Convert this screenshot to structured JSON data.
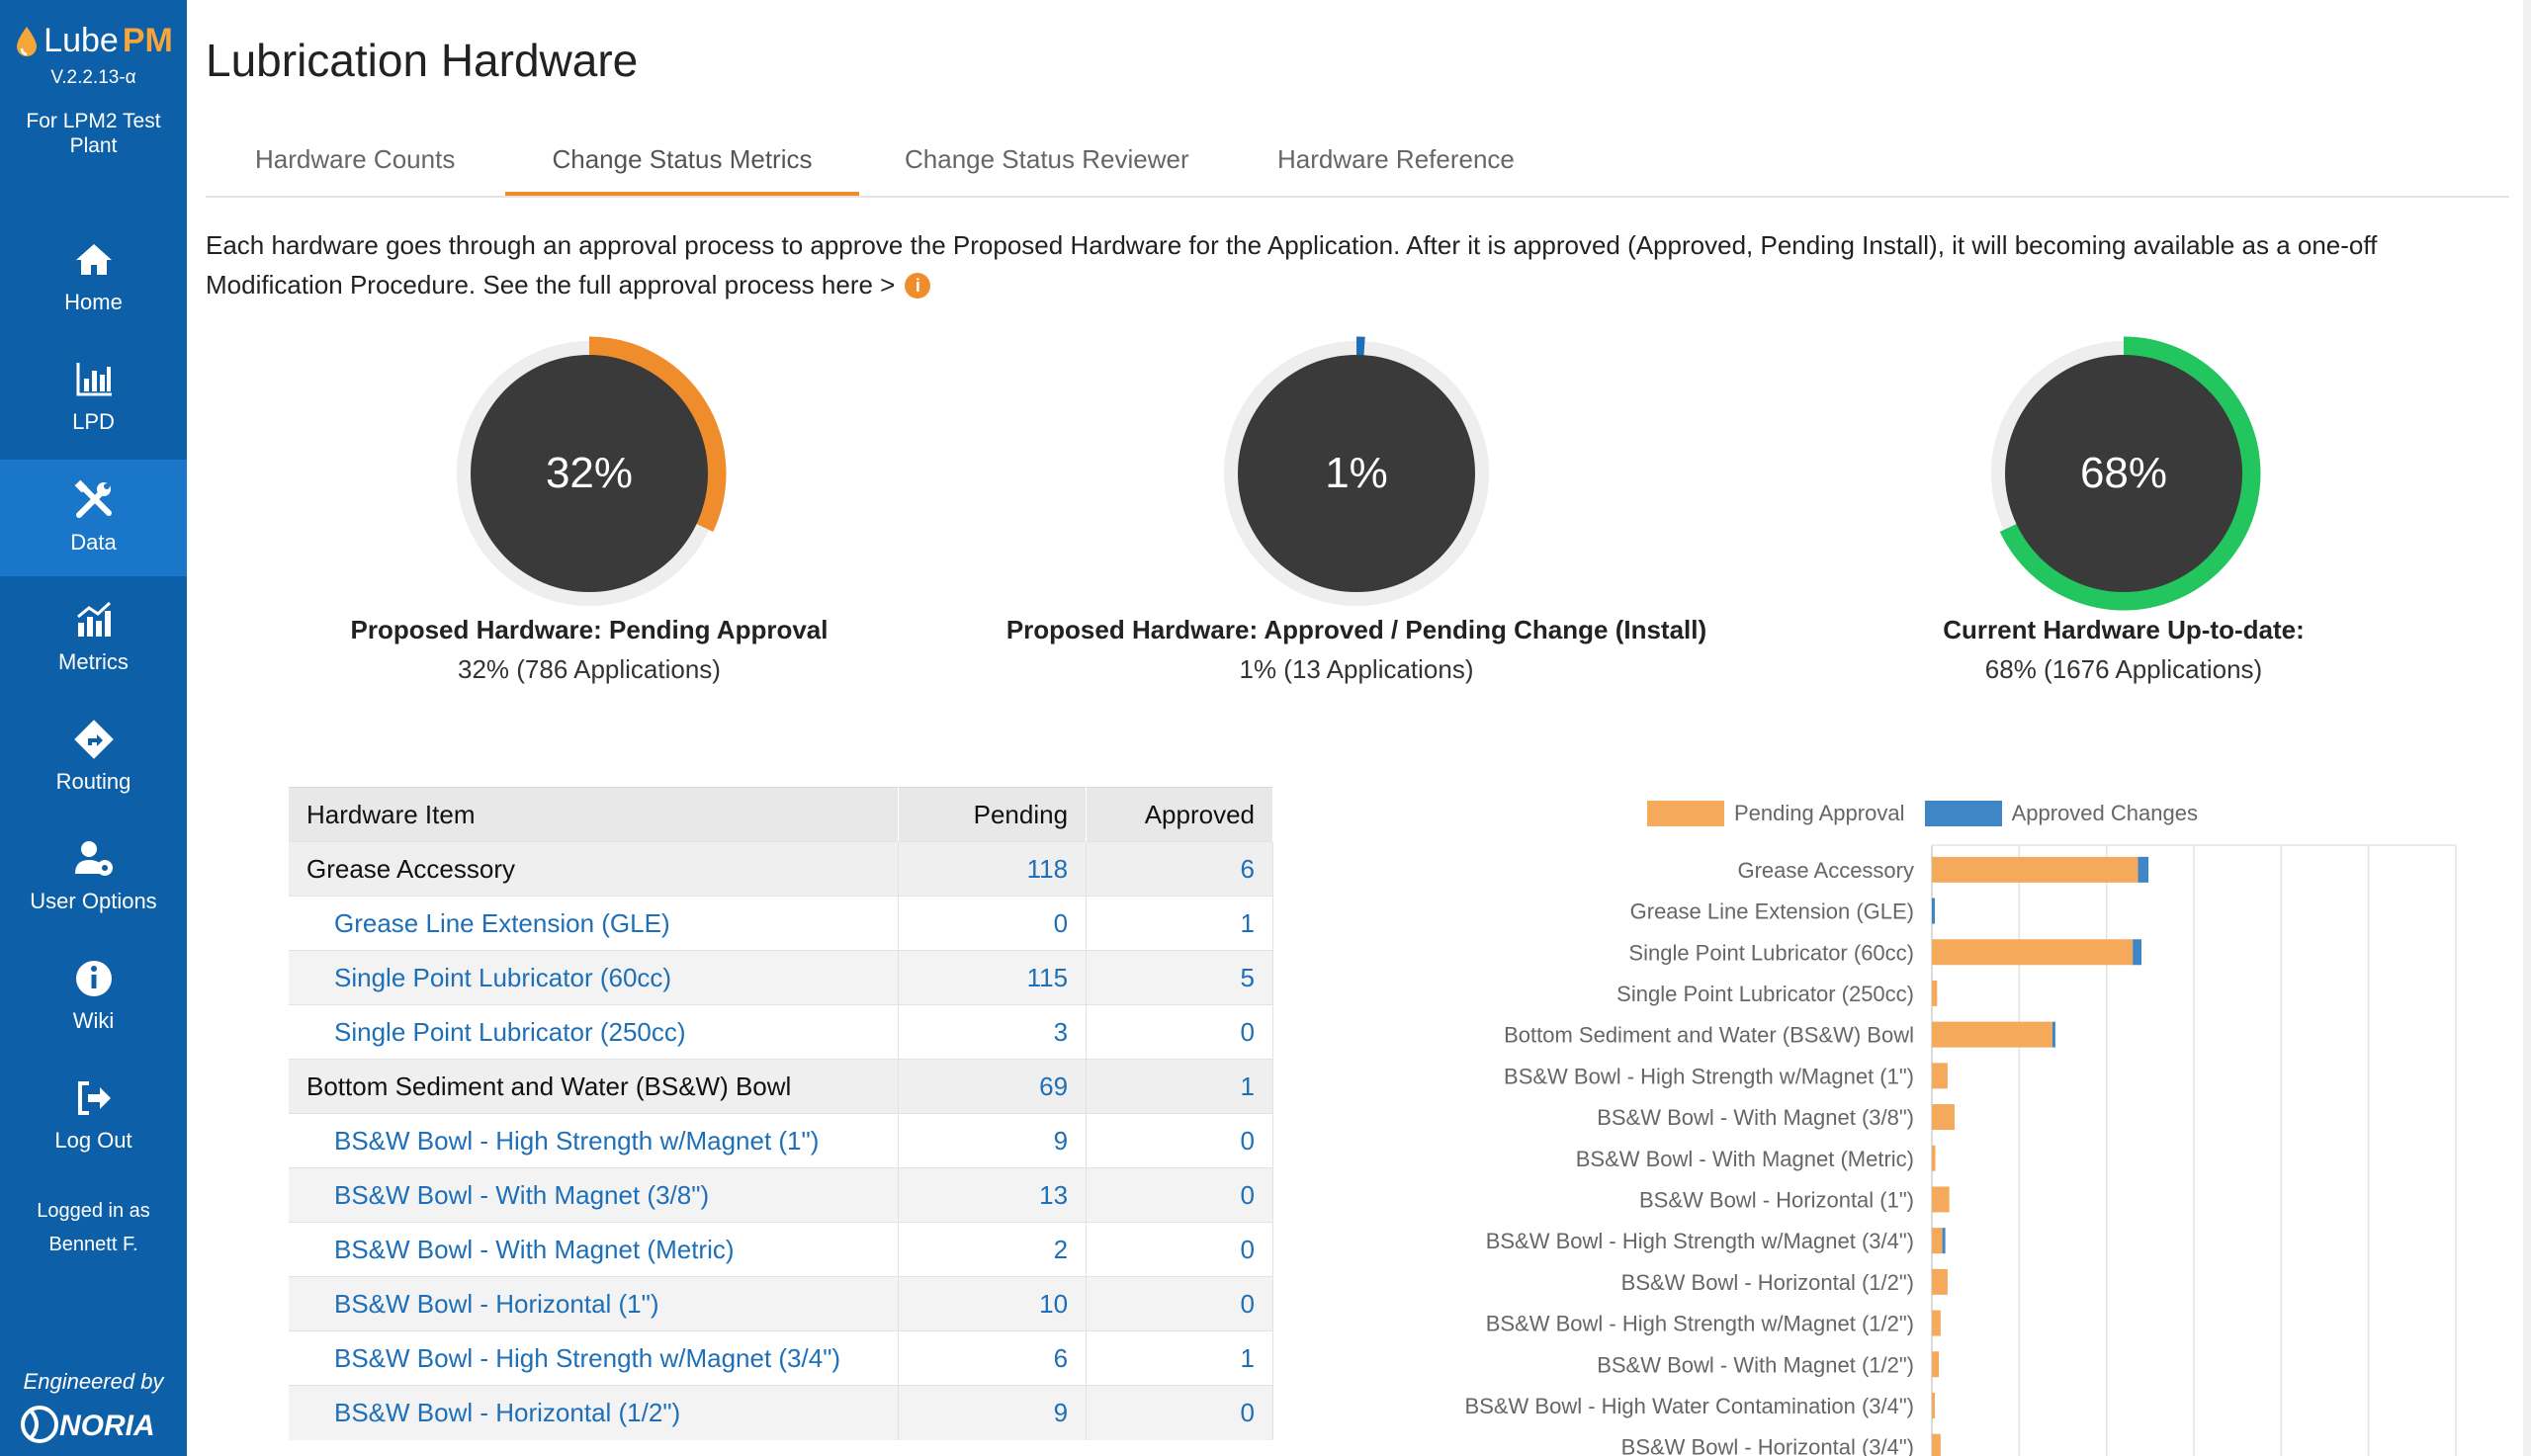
{
  "app": {
    "brand_prefix": "Lube",
    "brand_suffix": "PM",
    "version": "V.2.2.13-α",
    "plant": "For LPM2 Test Plant"
  },
  "nav": [
    {
      "label": "Home",
      "icon": "home-icon"
    },
    {
      "label": "LPD",
      "icon": "bar-chart-icon"
    },
    {
      "label": "Data",
      "icon": "tools-icon"
    },
    {
      "label": "Metrics",
      "icon": "metrics-icon"
    },
    {
      "label": "Routing",
      "icon": "routing-icon"
    },
    {
      "label": "User Options",
      "icon": "user-gear-icon"
    },
    {
      "label": "Wiki",
      "icon": "info-icon"
    },
    {
      "label": "Log Out",
      "icon": "logout-icon"
    }
  ],
  "logged_in": {
    "line1": "Logged in as",
    "line2": "Bennett F."
  },
  "footer": {
    "engineered_by": "Engineered by",
    "company": "NORIA"
  },
  "page": {
    "title": "Lubrication Hardware"
  },
  "tabs": [
    {
      "label": "Hardware Counts"
    },
    {
      "label": "Change Status Metrics"
    },
    {
      "label": "Change Status Reviewer"
    },
    {
      "label": "Hardware Reference"
    }
  ],
  "active_tab": "Change Status Metrics",
  "description": {
    "text": "Each hardware goes through an approval process to approve the Proposed Hardware for the Application. After it is approved (Approved, Pending Install), it will becoming available as a one-off Modification Procedure. See the full approval process here >",
    "info": "i"
  },
  "kpis": [
    {
      "pct_label": "32%",
      "fraction": 0.32,
      "color": "#ef8d2c",
      "title": "Proposed Hardware: Pending Approval",
      "subtitle": "32% (786 Applications)"
    },
    {
      "pct_label": "1%",
      "fraction": 0.01,
      "color": "#1d6fb8",
      "title": "Proposed Hardware: Approved / Pending Change (Install)",
      "subtitle": "1% (13 Applications)"
    },
    {
      "pct_label": "68%",
      "fraction": 0.68,
      "color": "#22c55e",
      "title": "Current Hardware Up-to-date:",
      "subtitle": "68% (1676 Applications)"
    }
  ],
  "table": {
    "headers": {
      "item": "Hardware Item",
      "pending": "Pending",
      "approved": "Approved"
    },
    "rows": [
      {
        "item": "Grease Accessory",
        "pending": "118",
        "approved": "6",
        "group": true
      },
      {
        "item": "Grease Line Extension (GLE)",
        "pending": "0",
        "approved": "1",
        "group": false
      },
      {
        "item": "Single Point Lubricator (60cc)",
        "pending": "115",
        "approved": "5",
        "group": false
      },
      {
        "item": "Single Point Lubricator (250cc)",
        "pending": "3",
        "approved": "0",
        "group": false
      },
      {
        "item": "Bottom Sediment and Water (BS&W) Bowl",
        "pending": "69",
        "approved": "1",
        "group": true
      },
      {
        "item": "BS&W Bowl - High Strength w/Magnet (1\")",
        "pending": "9",
        "approved": "0",
        "group": false
      },
      {
        "item": "BS&W Bowl - With Magnet (3/8\")",
        "pending": "13",
        "approved": "0",
        "group": false
      },
      {
        "item": "BS&W Bowl - With Magnet (Metric)",
        "pending": "2",
        "approved": "0",
        "group": false
      },
      {
        "item": "BS&W Bowl - Horizontal (1\")",
        "pending": "10",
        "approved": "0",
        "group": false
      },
      {
        "item": "BS&W Bowl - High Strength w/Magnet (3/4\")",
        "pending": "6",
        "approved": "1",
        "group": false
      },
      {
        "item": "BS&W Bowl - Horizontal (1/2\")",
        "pending": "9",
        "approved": "0",
        "group": false
      }
    ]
  },
  "chart_data": {
    "type": "bar",
    "orientation": "horizontal",
    "stacked": true,
    "legend": [
      "Pending Approval",
      "Approved Changes"
    ],
    "legend_position": "top",
    "categories": [
      "Grease Accessory",
      "Grease Line Extension (GLE)",
      "Single Point Lubricator (60cc)",
      "Single Point Lubricator (250cc)",
      "Bottom Sediment and Water (BS&W) Bowl",
      "BS&W Bowl - High Strength w/Magnet (1\")",
      "BS&W Bowl - With Magnet  (3/8\")",
      "BS&W Bowl - With Magnet  (Metric)",
      "BS&W Bowl - Horizontal (1\")",
      "BS&W Bowl - High Strength w/Magnet (3/4\")",
      "BS&W Bowl - Horizontal (1/2\")",
      "BS&W Bowl - High Strength w/Magnet (1/2\")",
      "BS&W Bowl - With Magnet  (1/2\")",
      "BS&W Bowl - High Water Contamination  (3/4\")",
      "BS&W Bowl - Horizontal (3/4\")"
    ],
    "series": [
      {
        "name": "Pending Approval",
        "color": "#f5a95a",
        "values": [
          118,
          0,
          115,
          3,
          69,
          9,
          13,
          2,
          10,
          6,
          9,
          5,
          4,
          1,
          5
        ]
      },
      {
        "name": "Approved Changes",
        "color": "#3f86c6",
        "values": [
          6,
          1,
          5,
          0,
          1,
          0,
          0,
          0,
          0,
          1,
          0,
          0,
          0,
          0,
          0
        ]
      }
    ],
    "xlim": [
      0,
      300
    ],
    "grid": true
  }
}
